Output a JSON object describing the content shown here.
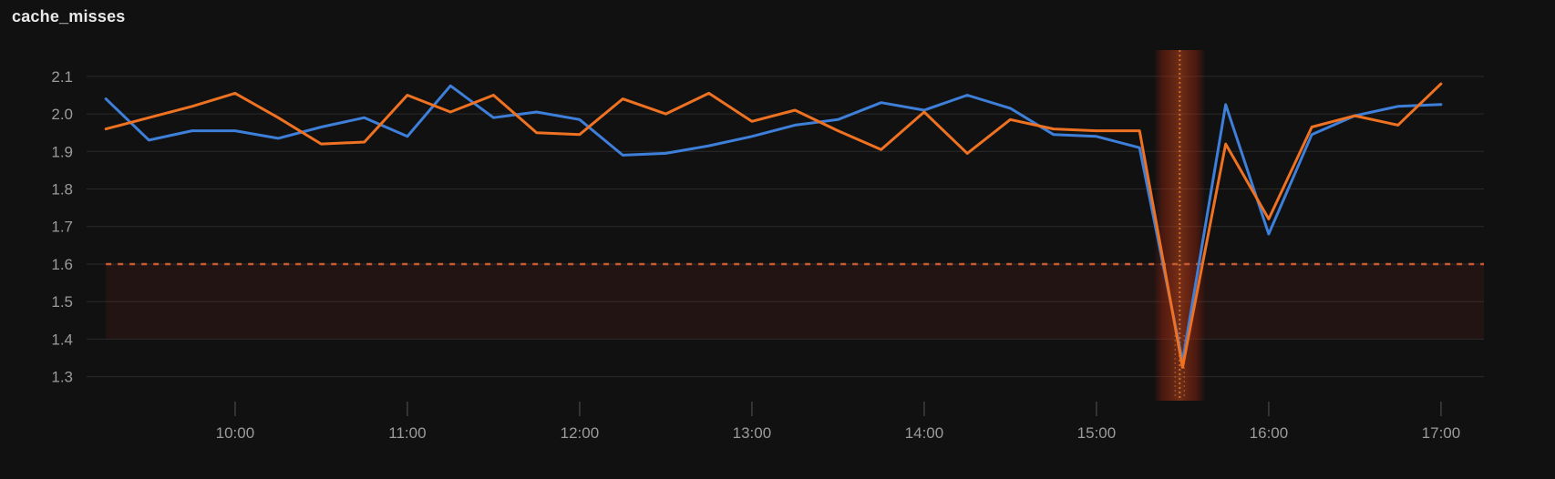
{
  "panel": {
    "title": "cache_misses",
    "background": "#111111"
  },
  "chart_data": {
    "type": "line",
    "title": "cache_misses",
    "grid": true,
    "legend": "none",
    "x_axis": {
      "tick_labels": [
        "10:00",
        "11:00",
        "12:00",
        "13:00",
        "14:00",
        "15:00",
        "16:00",
        "17:00"
      ],
      "xlim_hours": [
        9.138,
        17.249
      ],
      "label_color": "#9b9b9b"
    },
    "y_axis": {
      "tick_labels": [
        "1.3",
        "1.4",
        "1.5",
        "1.6",
        "1.7",
        "1.8",
        "1.9",
        "2.0",
        "2.1"
      ],
      "ticks": [
        1.3,
        1.4,
        1.5,
        1.6,
        1.7,
        1.8,
        1.9,
        2.0,
        2.1
      ],
      "ylim": [
        1.236,
        2.17
      ],
      "label_color": "#9b9b9b"
    },
    "x_times": [
      "09:15",
      "09:30",
      "09:45",
      "10:00",
      "10:15",
      "10:30",
      "10:45",
      "11:00",
      "11:15",
      "11:30",
      "11:45",
      "12:00",
      "12:15",
      "12:30",
      "12:45",
      "13:00",
      "13:15",
      "13:30",
      "13:45",
      "14:00",
      "14:15",
      "14:30",
      "14:45",
      "15:00",
      "15:15",
      "15:30",
      "15:45",
      "16:00",
      "16:15",
      "16:30",
      "16:45",
      "17:00"
    ],
    "series": [
      {
        "id": "blue-series",
        "color": "#3e7fd9",
        "values": [
          2.04,
          1.93,
          1.955,
          1.955,
          1.935,
          1.965,
          1.99,
          1.94,
          2.075,
          1.99,
          2.005,
          1.985,
          1.89,
          1.895,
          1.915,
          1.94,
          1.97,
          1.985,
          2.03,
          2.01,
          2.05,
          2.015,
          1.945,
          1.94,
          1.91,
          1.34,
          2.025,
          1.68,
          1.945,
          1.995,
          2.02,
          2.025
        ]
      },
      {
        "id": "orange-series",
        "color": "#ef7222",
        "values": [
          1.96,
          1.99,
          2.02,
          2.055,
          1.99,
          1.92,
          1.925,
          2.05,
          2.005,
          2.05,
          1.95,
          1.945,
          2.04,
          2.0,
          2.055,
          1.98,
          2.01,
          1.955,
          1.905,
          2.005,
          1.895,
          1.985,
          1.96,
          1.955,
          1.955,
          1.325,
          1.92,
          1.72,
          1.965,
          1.995,
          1.97,
          2.08
        ]
      }
    ],
    "threshold": {
      "value": 1.6,
      "style": "dashed",
      "color": "#c75a31",
      "region_from": 1.4,
      "region_to": 1.6,
      "region_fill": "rgba(255,70,35,0.075)"
    },
    "annotation_region": {
      "start": "15:20",
      "end": "15:38",
      "center": "15:29",
      "color": "#d04a1a",
      "dot_color": "#d97a33"
    },
    "colors": {
      "gridline": "#2a2a2a",
      "tick_mark": "#3f3f3f",
      "background": "#111111"
    }
  }
}
